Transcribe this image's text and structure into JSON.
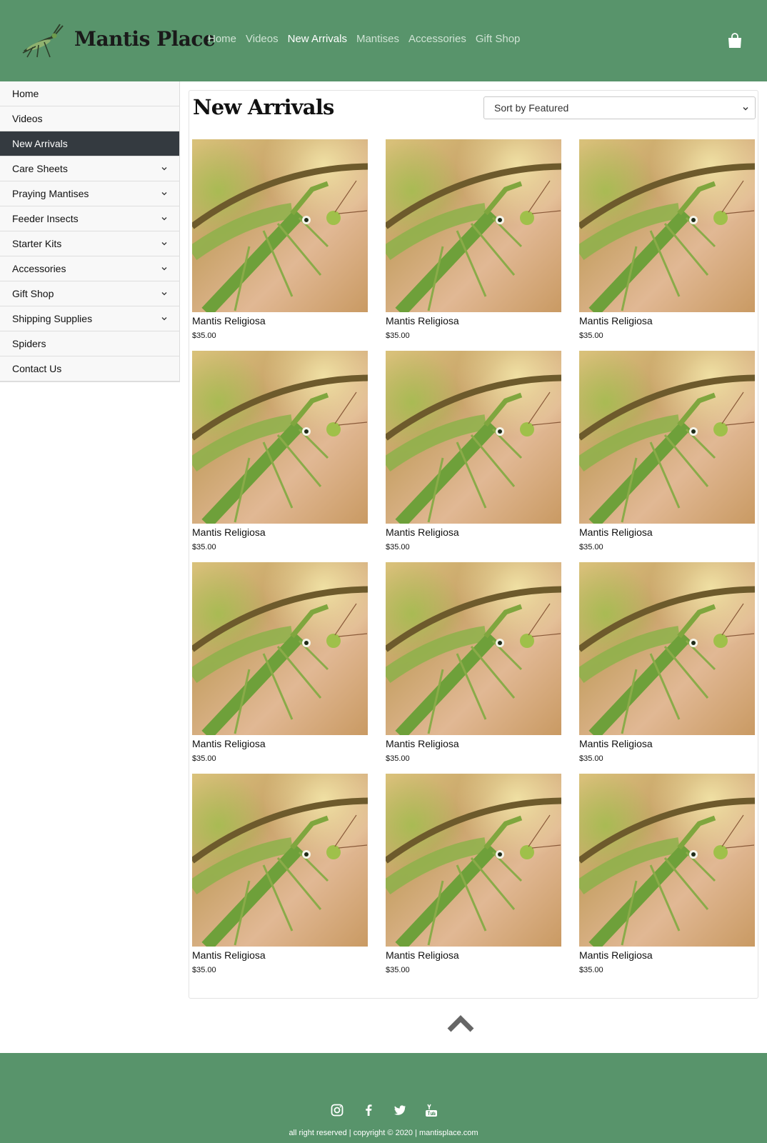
{
  "header": {
    "brand": "Mantis Place",
    "logo_icon": "mantis-logo-icon",
    "nav": [
      {
        "label": "Home",
        "active": false
      },
      {
        "label": "Videos",
        "active": false
      },
      {
        "label": "New Arrivals",
        "active": true
      },
      {
        "label": "Mantises",
        "active": false
      },
      {
        "label": "Accessories",
        "active": false
      },
      {
        "label": "Gift Shop",
        "active": false
      }
    ],
    "cart_icon": "shopping-bag-icon"
  },
  "sidebar": {
    "items": [
      {
        "label": "Home",
        "has_submenu": false,
        "active": false
      },
      {
        "label": "Videos",
        "has_submenu": false,
        "active": false
      },
      {
        "label": "New Arrivals",
        "has_submenu": false,
        "active": true
      },
      {
        "label": "Care Sheets",
        "has_submenu": true,
        "active": false
      },
      {
        "label": "Praying Mantises",
        "has_submenu": true,
        "active": false
      },
      {
        "label": "Feeder Insects",
        "has_submenu": true,
        "active": false
      },
      {
        "label": "Starter Kits",
        "has_submenu": true,
        "active": false
      },
      {
        "label": "Accessories",
        "has_submenu": true,
        "active": false
      },
      {
        "label": "Gift Shop",
        "has_submenu": true,
        "active": false
      },
      {
        "label": "Shipping Supplies",
        "has_submenu": true,
        "active": false
      },
      {
        "label": "Spiders",
        "has_submenu": false,
        "active": false
      },
      {
        "label": "Contact Us",
        "has_submenu": false,
        "active": false
      }
    ]
  },
  "main": {
    "title": "New Arrivals",
    "sort": {
      "selected": "Sort by Featured"
    },
    "products": [
      {
        "name": "Mantis Religiosa",
        "price": "$35.00"
      },
      {
        "name": "Mantis Religiosa",
        "price": "$35.00"
      },
      {
        "name": "Mantis Religiosa",
        "price": "$35.00"
      },
      {
        "name": "Mantis Religiosa",
        "price": "$35.00"
      },
      {
        "name": "Mantis Religiosa",
        "price": "$35.00"
      },
      {
        "name": "Mantis Religiosa",
        "price": "$35.00"
      },
      {
        "name": "Mantis Religiosa",
        "price": "$35.00"
      },
      {
        "name": "Mantis Religiosa",
        "price": "$35.00"
      },
      {
        "name": "Mantis Religiosa",
        "price": "$35.00"
      },
      {
        "name": "Mantis Religiosa",
        "price": "$35.00"
      },
      {
        "name": "Mantis Religiosa",
        "price": "$35.00"
      },
      {
        "name": "Mantis Religiosa",
        "price": "$35.00"
      }
    ]
  },
  "back_to_top_icon": "chevron-up-icon",
  "footer": {
    "socials": [
      "instagram-icon",
      "facebook-icon",
      "twitter-icon",
      "youtube-icon"
    ],
    "copyright": "all right reserved | copyright © 2020 | mantisplace.com"
  },
  "colors": {
    "header_bg": "#58946b",
    "nav_active": "#ffffff",
    "nav_inactive": "#cfe3d4",
    "sidebar_active_bg": "#343a40"
  }
}
